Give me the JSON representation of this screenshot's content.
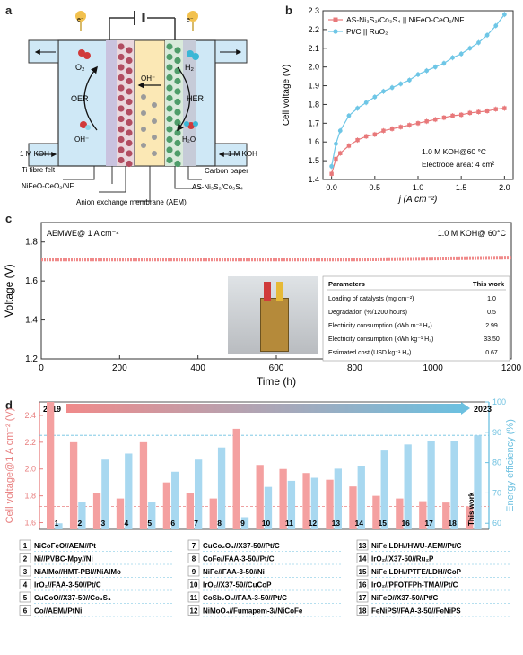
{
  "panels": {
    "a": "a",
    "b": "b",
    "c": "c",
    "d": "d"
  },
  "panel_a": {
    "electron_left": "e⁻",
    "electron_right": "e⁻",
    "o2": "O₂",
    "h2": "H₂",
    "oer": "OER",
    "her": "HER",
    "oh_left": "OH⁻",
    "oh_center": "OH⁻",
    "h2o": "H₂O",
    "koh_left": "1 M KOH",
    "koh_right": "1 M KOH",
    "ti_felt": "Ti fibre felt",
    "anode": "NiFeO-CeO₂/NF",
    "carbon_paper": "Carbon paper",
    "cathode": "AS-Ni₃S₂/Co₃S₄",
    "membrane": "Anion exchange membrane (AEM)"
  },
  "chart_data": [
    {
      "id": "b",
      "type": "line",
      "xlabel": "j (A cm⁻²)",
      "ylabel": "Cell voltage (V)",
      "xlim": [
        -0.1,
        2.1
      ],
      "ylim": [
        1.4,
        2.3
      ],
      "xticks": [
        0.0,
        0.5,
        1.0,
        1.5,
        2.0
      ],
      "yticks": [
        1.4,
        1.5,
        1.6,
        1.7,
        1.8,
        1.9,
        2.0,
        2.1,
        2.2,
        2.3
      ],
      "legend_position": "top-left",
      "annotations": [
        "1.0 M KOH@60 °C",
        "Electrode area: 4 cm²"
      ],
      "series": [
        {
          "name": "AS-Ni₃S₂/Co₃S₄ || NiFeO-CeO₂/NF",
          "color": "#e8787a",
          "x": [
            0.0,
            0.05,
            0.1,
            0.2,
            0.3,
            0.4,
            0.5,
            0.6,
            0.7,
            0.8,
            0.9,
            1.0,
            1.1,
            1.2,
            1.3,
            1.4,
            1.5,
            1.6,
            1.7,
            1.8,
            1.9,
            2.0
          ],
          "y": [
            1.43,
            1.51,
            1.54,
            1.58,
            1.61,
            1.63,
            1.64,
            1.66,
            1.67,
            1.68,
            1.69,
            1.7,
            1.71,
            1.72,
            1.73,
            1.74,
            1.745,
            1.755,
            1.76,
            1.765,
            1.775,
            1.78
          ]
        },
        {
          "name": "Pt/C || RuO₂",
          "color": "#6ec6e6",
          "x": [
            0.0,
            0.05,
            0.1,
            0.2,
            0.3,
            0.4,
            0.5,
            0.6,
            0.7,
            0.8,
            0.9,
            1.0,
            1.1,
            1.2,
            1.3,
            1.4,
            1.5,
            1.6,
            1.7,
            1.8,
            1.9,
            2.0
          ],
          "y": [
            1.47,
            1.59,
            1.66,
            1.74,
            1.78,
            1.81,
            1.84,
            1.87,
            1.89,
            1.91,
            1.93,
            1.96,
            1.98,
            2.0,
            2.02,
            2.05,
            2.07,
            2.1,
            2.13,
            2.17,
            2.22,
            2.28
          ]
        }
      ]
    },
    {
      "id": "c",
      "type": "line",
      "xlabel": "Time (h)",
      "ylabel": "Voltage (V)",
      "xlim": [
        0,
        1200
      ],
      "ylim": [
        1.2,
        1.9
      ],
      "xticks": [
        0,
        200,
        400,
        600,
        800,
        1000,
        1200
      ],
      "yticks": [
        1.2,
        1.4,
        1.6,
        1.8
      ],
      "annotations": [
        "AEMWE@ 1 A cm⁻²",
        "1.0 M KOH@ 60°C"
      ],
      "series": [
        {
          "color": "#f08a8a",
          "x": [
            0,
            200,
            400,
            600,
            800,
            1000,
            1200
          ],
          "y": [
            1.71,
            1.71,
            1.71,
            1.71,
            1.71,
            1.715,
            1.72
          ]
        }
      ],
      "table": {
        "headers": [
          "Parameters",
          "This work"
        ],
        "rows": [
          [
            "Loading of catalysts (mg cm⁻²)",
            "1.0"
          ],
          [
            "Degradation (%/1200 hours)",
            "0.5"
          ],
          [
            "Electricity consumption (kWh m⁻³ H₂)",
            "2.99"
          ],
          [
            "Electricity consumption (kWh kg⁻¹ H₂)",
            "33.50"
          ],
          [
            "Estimated cost (USD kg⁻¹ H₂)",
            "0.67"
          ]
        ]
      }
    },
    {
      "id": "d",
      "type": "bar",
      "ylabel_left": "Cell voltage@1 A cm⁻² (V)",
      "ylabel_right": "Energy efficiency (%)",
      "ylim_left": [
        1.55,
        2.5
      ],
      "ylim_right": [
        58,
        100
      ],
      "yticks_left": [
        1.6,
        1.8,
        2.0,
        2.2,
        2.4
      ],
      "yticks_right": [
        60,
        70,
        80,
        90,
        100
      ],
      "start_year": "2019",
      "end_year": "2023",
      "categories": [
        "1",
        "2",
        "3",
        "4",
        "5",
        "6",
        "7",
        "8",
        "9",
        "10",
        "11",
        "12",
        "13",
        "14",
        "15",
        "16",
        "17",
        "18",
        "This work"
      ],
      "visible_category_labels": [
        "1",
        "2",
        "3",
        "4",
        "5",
        "6",
        "7",
        "8",
        "9",
        "10",
        "11",
        "12",
        "13",
        "14",
        "15",
        "16",
        "17",
        "18"
      ],
      "this_work_label": "This work",
      "series": [
        {
          "name": "Cell voltage",
          "color": "#f4a0a0",
          "values": [
            2.5,
            2.2,
            1.82,
            1.78,
            2.2,
            1.9,
            1.82,
            1.78,
            2.3,
            2.03,
            2.0,
            1.97,
            1.92,
            1.87,
            1.8,
            1.78,
            1.76,
            1.75,
            1.72
          ]
        },
        {
          "name": "Energy efficiency",
          "color": "#a8d8f0",
          "values": [
            60,
            67,
            81,
            83,
            67,
            77,
            81,
            85,
            62,
            72,
            74,
            75,
            78,
            79,
            84,
            86,
            87,
            87,
            89
          ]
        }
      ],
      "legend": [
        {
          "num": "1",
          "text": "NiCoFeO//AEM//Pt"
        },
        {
          "num": "2",
          "text": "Ni//PVBC-Mpy//Ni"
        },
        {
          "num": "3",
          "text": "NiAlMo//HMT-PBI//NiAlMo"
        },
        {
          "num": "4",
          "text": "IrO₂//FAA-3-50//Pt/C"
        },
        {
          "num": "5",
          "text": "CuCoO//X37-50//Co₃S₄"
        },
        {
          "num": "6",
          "text": "Co//AEM//PtNi"
        },
        {
          "num": "7",
          "text": "CuCo₂O₄//X37-50//Pt/C"
        },
        {
          "num": "8",
          "text": "CoFe//FAA-3-50//Pt/C"
        },
        {
          "num": "9",
          "text": "NiFe//FAA-3-50//Ni"
        },
        {
          "num": "10",
          "text": "IrO₂//X37-50//CuCoP"
        },
        {
          "num": "11",
          "text": "CoSb₂O₆//FAA-3-50//Pt/C"
        },
        {
          "num": "12",
          "text": "NiMoO₄//Fumapem-3//NiCoFe"
        },
        {
          "num": "13",
          "text": "NiFe LDH//HWU-AEM//Pt/C"
        },
        {
          "num": "14",
          "text": "IrO₂//X37-50//Ru₂P"
        },
        {
          "num": "15",
          "text": "NiFe LDH//PTFE/LDH//CoP"
        },
        {
          "num": "16",
          "text": "IrO₂//PFOTFPh-TMA//Pt/C"
        },
        {
          "num": "17",
          "text": "NiFeO//X37-50//Pt/C"
        },
        {
          "num": "18",
          "text": "FeNiPS//FAA-3-50//FeNiPS"
        }
      ]
    }
  ],
  "colors": {
    "red": "#e8787a",
    "blue": "#6ec6e6",
    "bar_red": "#f4a0a0",
    "bar_blue": "#a8d8f0",
    "axis_red": "#e88080",
    "axis_blue": "#6cc0e0"
  },
  "icons": [
    "electron-icon",
    "battery-icon",
    "o2-molecule-icon",
    "h2-molecule-icon",
    "electrolyzer-photo"
  ]
}
